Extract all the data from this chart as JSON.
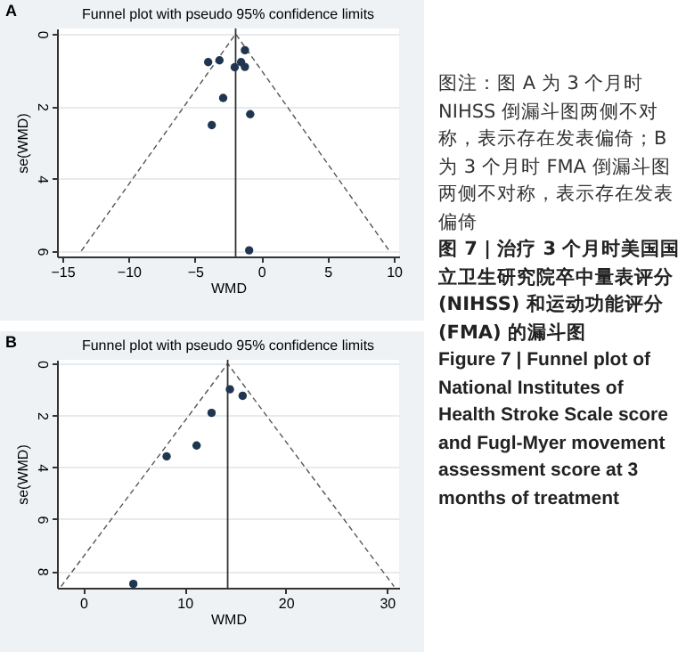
{
  "chart_data": [
    {
      "type": "scatter",
      "title": "Funnel plot with pseudo 95% confidence limits",
      "xlabel": "WMD",
      "ylabel": "se(WMD)",
      "annotations": [
        "A"
      ],
      "xlim": [
        -15.4,
        10.4
      ],
      "xticks": [
        -15,
        -10,
        -5,
        0,
        5,
        10
      ],
      "ylim": [
        6.15,
        -0.15
      ],
      "yticks": [
        0,
        2,
        4,
        6
      ],
      "grid": "y",
      "series": [
        {
          "type": "scatter",
          "marker": "circle",
          "color": "#1f3550",
          "x": [
            -4.0,
            -3.15,
            -1.23,
            -1.52,
            -1.23,
            -2.0,
            -2.87,
            -3.73,
            -0.83,
            -0.91
          ],
          "values": [
            0.78,
            0.73,
            0.45,
            0.78,
            0.91,
            0.92,
            1.77,
            2.52,
            2.22,
            5.98
          ]
        },
        {
          "type": "line",
          "color": "#555555",
          "line_style": "dashed",
          "x": [
            -13.57,
            -1.93,
            9.67
          ],
          "values": [
            6,
            0,
            6
          ]
        }
      ],
      "ref_lines": [
        {
          "axis": "x",
          "value": -1.93,
          "color": "#333333",
          "line_style": "solid"
        }
      ]
    },
    {
      "type": "scatter",
      "title": "Funnel plot with pseudo 95% confidence limits",
      "xlabel": "WMD",
      "ylabel": "se(WMD)",
      "annotations": [
        "B"
      ],
      "xlim": [
        -2.6,
        31.2
      ],
      "xticks": [
        0,
        10,
        20,
        30
      ],
      "ylim": [
        8.65,
        -0.15
      ],
      "yticks": [
        0,
        2,
        4,
        6,
        8
      ],
      "grid": "y",
      "series": [
        {
          "type": "scatter",
          "marker": "circle",
          "color": "#1f3550",
          "x": [
            8.23,
            11.19,
            12.67,
            14.48,
            15.74,
            4.94
          ],
          "values": [
            3.58,
            3.16,
            1.9,
            0.99,
            1.24,
            8.5
          ]
        },
        {
          "type": "line",
          "color": "#555555",
          "line_style": "dashed",
          "x": [
            -2.2,
            14.26,
            30.7
          ],
          "values": [
            8.6,
            0,
            8.6
          ]
        }
      ],
      "ref_lines": [
        {
          "axis": "x",
          "value": 14.26,
          "color": "#333333",
          "line_style": "solid"
        }
      ]
    },
    {
      "type": "other",
      "annotations": [
        "图注：图 A 为 3 个月时 NIHSS 倒漏斗图两侧不对称，表示存在发表偏倚；B 为 3 个月时 FMA 倒漏斗图两侧不对称，表示存在发表偏倚"
      ],
      "title": "图 7 | 治疗 3 个月时美国国立卫生研究院卒中量表评分 (NIHSS) 和运动功能评分 (FMA) 的漏斗图",
      "subtitle": "Figure 7 | Funnel plot of National Institutes of Health Stroke Scale score and Fugl-Myer movement assessment score at 3 months of treatment"
    }
  ]
}
